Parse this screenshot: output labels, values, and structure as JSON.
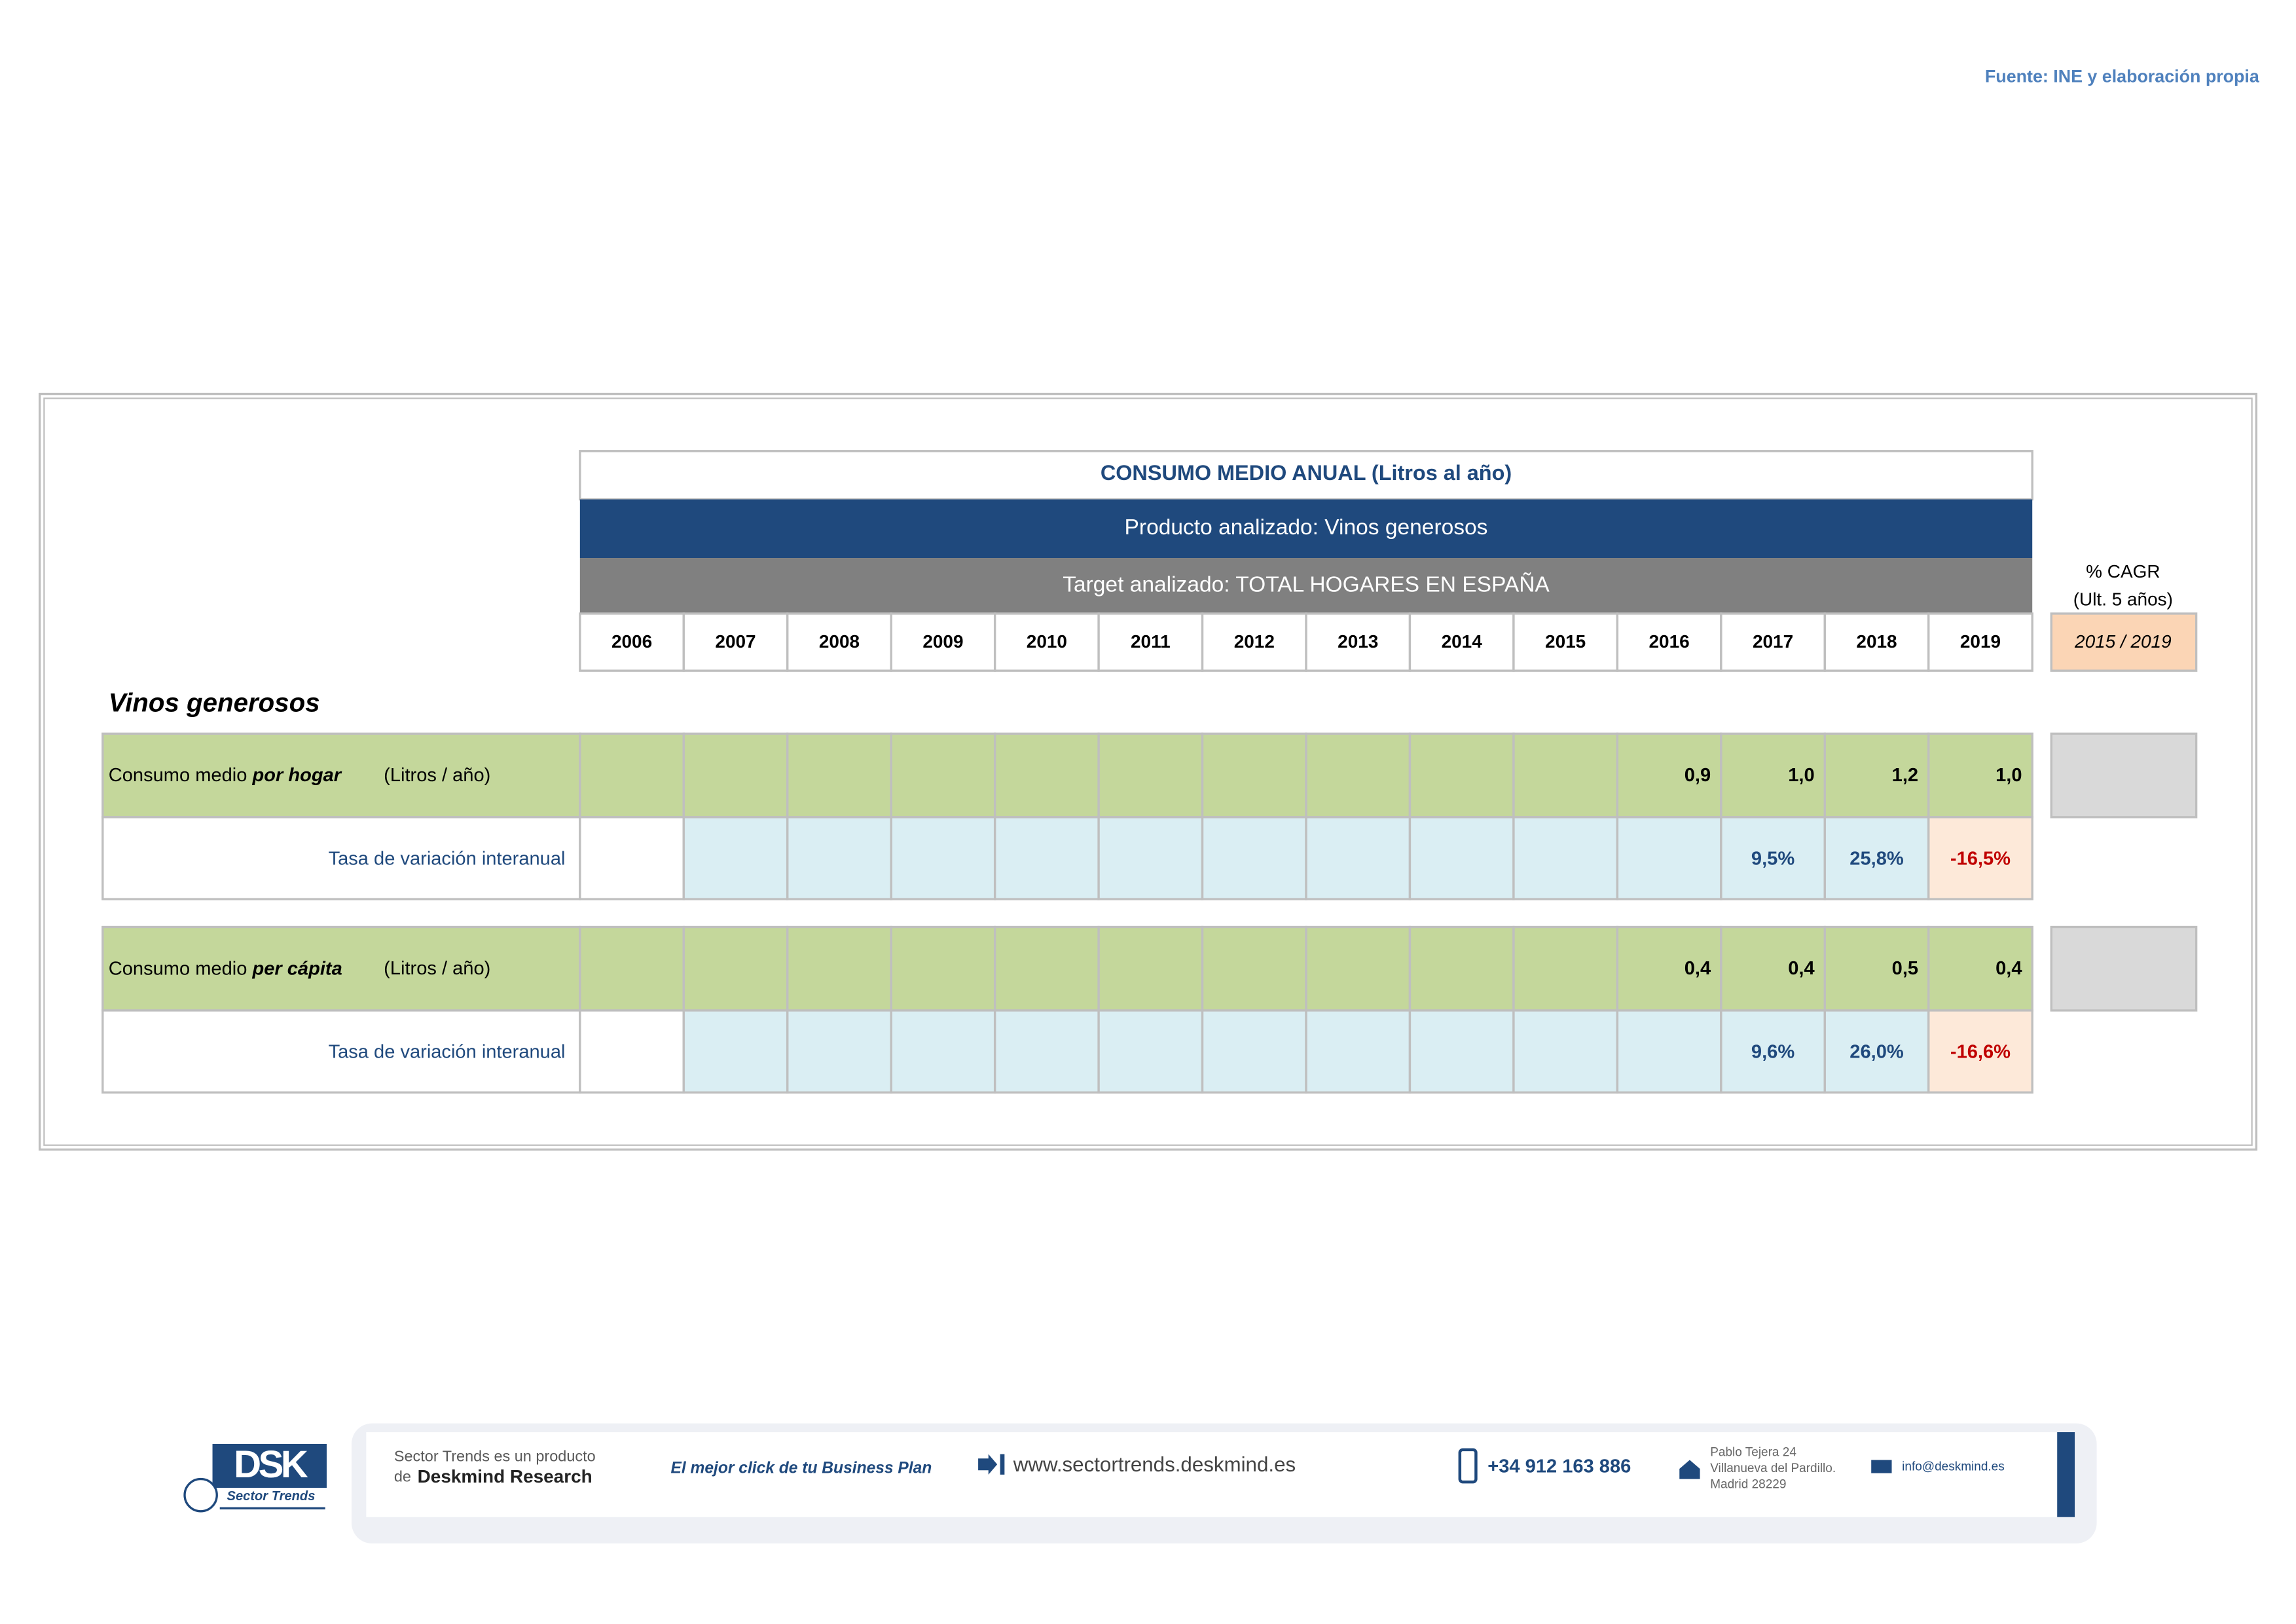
{
  "source": "Fuente: INE y elaboración propia",
  "table": {
    "title": "CONSUMO MEDIO ANUAL (Litros al año)",
    "product": "Producto analizado: Vinos generosos",
    "target": "Target analizado: TOTAL HOGARES EN ESPAÑA",
    "years": [
      "2006",
      "2007",
      "2008",
      "2009",
      "2010",
      "2011",
      "2012",
      "2013",
      "2014",
      "2015",
      "2016",
      "2017",
      "2018",
      "2019"
    ],
    "cagr_header": [
      "% CAGR",
      "(Ult. 5 años)"
    ],
    "cagr_period": "2015 / 2019",
    "section": "Vinos generosos",
    "rows": [
      {
        "label": {
          "prefix": "Consumo medio",
          "emphasis": "por hogar",
          "unit": "(Litros / año)"
        },
        "values": [
          null,
          null,
          null,
          null,
          null,
          null,
          null,
          null,
          null,
          null,
          "0,9",
          "1,0",
          "1,2",
          "1,0"
        ],
        "growth": {
          "label": "Tasa de variación interanual",
          "values": [
            null,
            null,
            null,
            null,
            null,
            null,
            null,
            null,
            null,
            null,
            null,
            "9,5%",
            "25,8%",
            "-16,5%"
          ]
        }
      },
      {
        "label": {
          "prefix": "Consumo medio",
          "emphasis": "per cápita",
          "unit": "(Litros / año)"
        },
        "values": [
          null,
          null,
          null,
          null,
          null,
          null,
          null,
          null,
          null,
          null,
          "0,4",
          "0,4",
          "0,5",
          "0,4"
        ],
        "growth": {
          "label": "Tasa de variación interanual",
          "values": [
            null,
            null,
            null,
            null,
            null,
            null,
            null,
            null,
            null,
            null,
            null,
            "9,6%",
            "26,0%",
            "-16,6%"
          ]
        }
      }
    ]
  },
  "footer": {
    "logo": "DSK",
    "logo_sub": "Sector Trends",
    "product_line": "Sector Trends es un producto",
    "product_of": "de",
    "company": "Deskmind Research",
    "slogan": "El mejor click de tu Business Plan",
    "website": "www.sectortrends.deskmind.es",
    "phone": "+34 912 163 886",
    "address": [
      "Pablo Tejera 24",
      "Villanueva del Pardillo.",
      "Madrid 28229"
    ],
    "email": "info@deskmind.es"
  }
}
